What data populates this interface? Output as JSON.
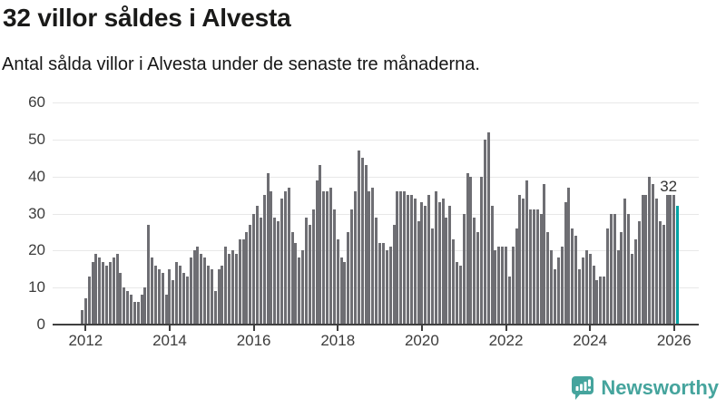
{
  "header": {
    "title": "32 villor såldes i Alvesta",
    "subtitle": "Antal sålda villor i Alvesta under de senaste tre månaderna."
  },
  "chart_data": {
    "type": "bar",
    "title": "32 villor såldes i Alvesta",
    "subtitle": "Antal sålda villor i Alvesta under de senaste tre månaderna.",
    "start_month": "2011-12",
    "end_month": "2026-02",
    "x_tick_years": [
      "2012",
      "2014",
      "2016",
      "2018",
      "2020",
      "2022",
      "2024",
      "2026"
    ],
    "y_ticks": [
      0,
      10,
      20,
      30,
      40,
      50,
      60
    ],
    "ylim": [
      0,
      60
    ],
    "grid": true,
    "values": [
      4,
      7,
      13,
      17,
      19,
      18,
      17,
      16,
      17,
      18,
      19,
      14,
      10,
      9,
      8,
      6,
      6,
      8,
      10,
      27,
      18,
      16,
      15,
      14,
      8,
      15,
      12,
      17,
      16,
      14,
      13,
      18,
      20,
      21,
      19,
      18,
      16,
      15,
      9,
      15,
      16,
      21,
      19,
      20,
      19,
      23,
      23,
      25,
      27,
      30,
      32,
      29,
      35,
      41,
      36,
      29,
      28,
      34,
      36,
      37,
      25,
      22,
      18,
      20,
      29,
      27,
      31,
      39,
      43,
      36,
      36,
      37,
      31,
      23,
      18,
      17,
      25,
      31,
      36,
      47,
      45,
      43,
      36,
      37,
      29,
      22,
      22,
      20,
      21,
      27,
      36,
      36,
      36,
      35,
      35,
      34,
      28,
      33,
      32,
      35,
      26,
      36,
      33,
      34,
      29,
      32,
      23,
      17,
      16,
      30,
      41,
      40,
      29,
      25,
      40,
      50,
      52,
      32,
      20,
      21,
      21,
      21,
      13,
      21,
      26,
      35,
      34,
      39,
      31,
      31,
      31,
      30,
      38,
      25,
      20,
      15,
      18,
      21,
      33,
      37,
      26,
      24,
      15,
      18,
      20,
      19,
      16,
      12,
      13,
      13,
      26,
      30,
      30,
      20,
      25,
      34,
      30,
      19,
      23,
      28,
      35,
      35,
      40,
      38,
      34,
      28,
      27,
      35,
      35,
      35,
      32
    ],
    "highlight_last": true,
    "highlight_value_label": "32",
    "bar_color": "#6e6e73",
    "highlight_color": "#00a3a4",
    "grid_color": "#e8e8e8",
    "axis_color": "#3f3f3f"
  },
  "footer": {
    "brand": "Newsworthy",
    "brand_color": "#45a49d"
  }
}
